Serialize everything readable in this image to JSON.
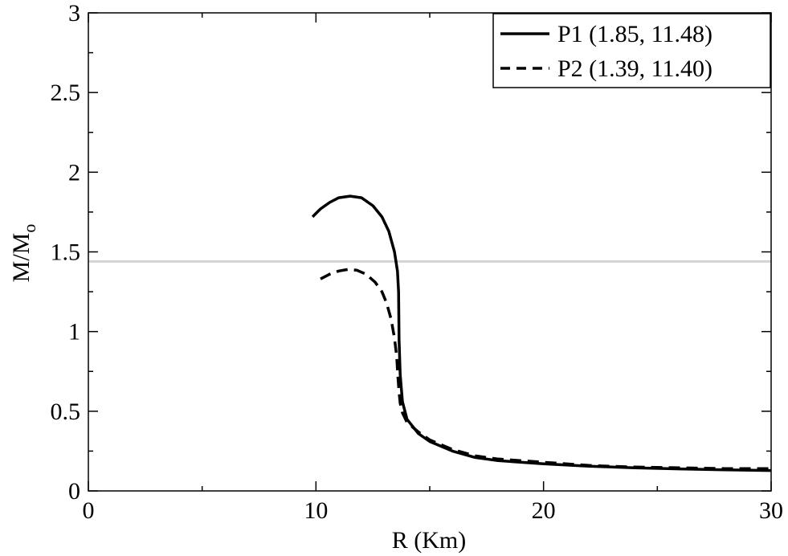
{
  "chart_data": {
    "type": "line",
    "xlabel": "R (Km)",
    "ylabel": {
      "main": "M/M",
      "sub": "o"
    },
    "xlim": [
      0,
      30
    ],
    "ylim": [
      0,
      3
    ],
    "xticks": [
      {
        "value": 0,
        "label": "0"
      },
      {
        "value": 10,
        "label": "10"
      },
      {
        "value": 20,
        "label": "20"
      },
      {
        "value": 30,
        "label": "30"
      }
    ],
    "yticks": [
      {
        "value": 0,
        "label": "0"
      },
      {
        "value": 0.5,
        "label": "0.5"
      },
      {
        "value": 1,
        "label": "1"
      },
      {
        "value": 1.5,
        "label": "1.5"
      },
      {
        "value": 2,
        "label": "2"
      },
      {
        "value": 2.5,
        "label": "2.5"
      },
      {
        "value": 3,
        "label": "3"
      }
    ],
    "grid": false,
    "legend_position": "top-right",
    "reference_line": {
      "y": 1.44,
      "color": "#d3d3d3"
    },
    "series": [
      {
        "name": "P1 (1.85, 11.48)",
        "style": "solid",
        "color": "#000000",
        "x": [
          9.85,
          10.2,
          10.6,
          11.0,
          11.5,
          12.0,
          12.5,
          12.9,
          13.2,
          13.45,
          13.58,
          13.63,
          13.64,
          13.65,
          13.7,
          13.8,
          14.0,
          14.5,
          15.0,
          16.0,
          17.0,
          18.0,
          20.0,
          22.0,
          24.0,
          26.0,
          28.0,
          30.0
        ],
        "y": [
          1.72,
          1.77,
          1.81,
          1.84,
          1.85,
          1.84,
          1.79,
          1.72,
          1.63,
          1.5,
          1.38,
          1.25,
          1.1,
          0.95,
          0.73,
          0.56,
          0.45,
          0.36,
          0.31,
          0.25,
          0.21,
          0.19,
          0.17,
          0.155,
          0.145,
          0.138,
          0.132,
          0.128
        ]
      },
      {
        "name": "P2 (1.39, 11.40)",
        "style": "dashed",
        "color": "#000000",
        "x": [
          10.2,
          10.6,
          11.0,
          11.4,
          11.8,
          12.2,
          12.6,
          12.9,
          13.1,
          13.3,
          13.45,
          13.55,
          13.6,
          13.65,
          13.7,
          13.8,
          14.0,
          14.5,
          15.0,
          16.0,
          17.0,
          18.0,
          20.0,
          22.0,
          24.0,
          26.0,
          28.0,
          30.0
        ],
        "y": [
          1.33,
          1.36,
          1.38,
          1.39,
          1.385,
          1.36,
          1.31,
          1.25,
          1.18,
          1.08,
          0.96,
          0.84,
          0.72,
          0.62,
          0.55,
          0.49,
          0.43,
          0.37,
          0.32,
          0.26,
          0.22,
          0.2,
          0.18,
          0.16,
          0.15,
          0.145,
          0.14,
          0.14
        ]
      }
    ]
  }
}
